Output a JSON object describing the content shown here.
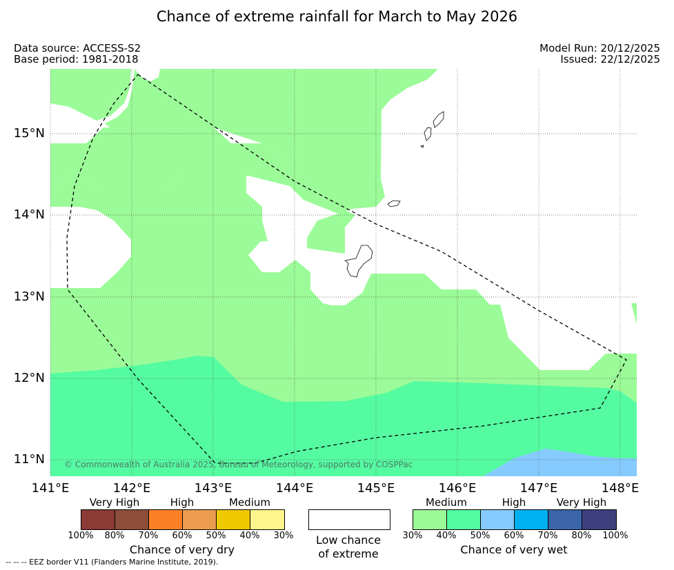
{
  "title": "Chance of extreme rainfall for March to May 2026",
  "data_source": "Data source: ACCESS-S2",
  "base_period": "Base period: 1981-2018",
  "model_run": "Model Run: 20/12/2025",
  "issued": "Issued: 22/12/2025",
  "map": {
    "lat_labels": [
      "15°N",
      "14°N",
      "13°N",
      "12°N",
      "11°N"
    ],
    "lon_labels": [
      "141°E",
      "142°E",
      "143°E",
      "144°E",
      "145°E",
      "146°E",
      "147°E",
      "148°E"
    ],
    "copyright": "© Commonwealth of Australia 2025, Bureau of Meteorology, supported by COSPPac",
    "colors": {
      "land_outline": "#000000",
      "wet_medium_30_40": "#9bfb98",
      "wet_medium_40_50": "#55fba1",
      "wet_high_50_60": "#85cbfd",
      "eez_border": "#000000"
    }
  },
  "legend": {
    "dry": {
      "categories": [
        "Very High",
        "High",
        "Medium"
      ],
      "colors": [
        "#8b3a34",
        "#8c4d3b",
        "#fd8028",
        "#ec9c4e",
        "#f0ca00",
        "#fef58b"
      ],
      "percentages": [
        "100%",
        "80%",
        "70%",
        "60%",
        "50%",
        "40%",
        "30%"
      ],
      "caption": "Chance of very dry"
    },
    "neutral": {
      "color": "#ffffff",
      "caption_line1": "Low chance",
      "caption_line2": "of extreme"
    },
    "wet": {
      "categories": [
        "Medium",
        "High",
        "Very High"
      ],
      "colors": [
        "#9bfb98",
        "#55fba1",
        "#85cbfd",
        "#00b0f0",
        "#3a65a8",
        "#3e3f7c"
      ],
      "percentages": [
        "30%",
        "40%",
        "50%",
        "60%",
        "70%",
        "80%",
        "100%"
      ],
      "caption": "Chance of very wet"
    }
  },
  "footnote": "--  --  -- EEZ border V11 (Flanders Marine Institute, 2019)."
}
